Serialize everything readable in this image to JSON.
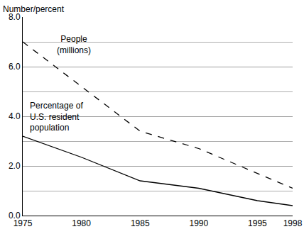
{
  "chart_data": {
    "type": "line",
    "y_label": "Number/percent",
    "x": [
      1975,
      1980,
      1985,
      1990,
      1995,
      1998
    ],
    "series": [
      {
        "name": "People\n(millions)",
        "color": "#000000",
        "line_style": "dashed",
        "values": [
          7.0,
          5.2,
          3.4,
          2.7,
          1.7,
          1.1
        ]
      },
      {
        "name": "Percentage of\nU.S. resident\npopulation",
        "color": "#000000",
        "line_style": "solid",
        "values": [
          3.2,
          2.35,
          1.4,
          1.1,
          0.6,
          0.4
        ]
      }
    ],
    "xlim": [
      1975,
      1998
    ],
    "xticks": [
      1975,
      1980,
      1985,
      1990,
      1995,
      1998
    ],
    "ylim": [
      0,
      8
    ],
    "yticks": [
      {
        "value": 0,
        "label": "0.0"
      },
      {
        "value": 2,
        "label": "2.0"
      },
      {
        "value": 4,
        "label": "4.0"
      },
      {
        "value": 6,
        "label": "6.0"
      },
      {
        "value": 8,
        "label": "8.0"
      }
    ],
    "grid": true
  }
}
